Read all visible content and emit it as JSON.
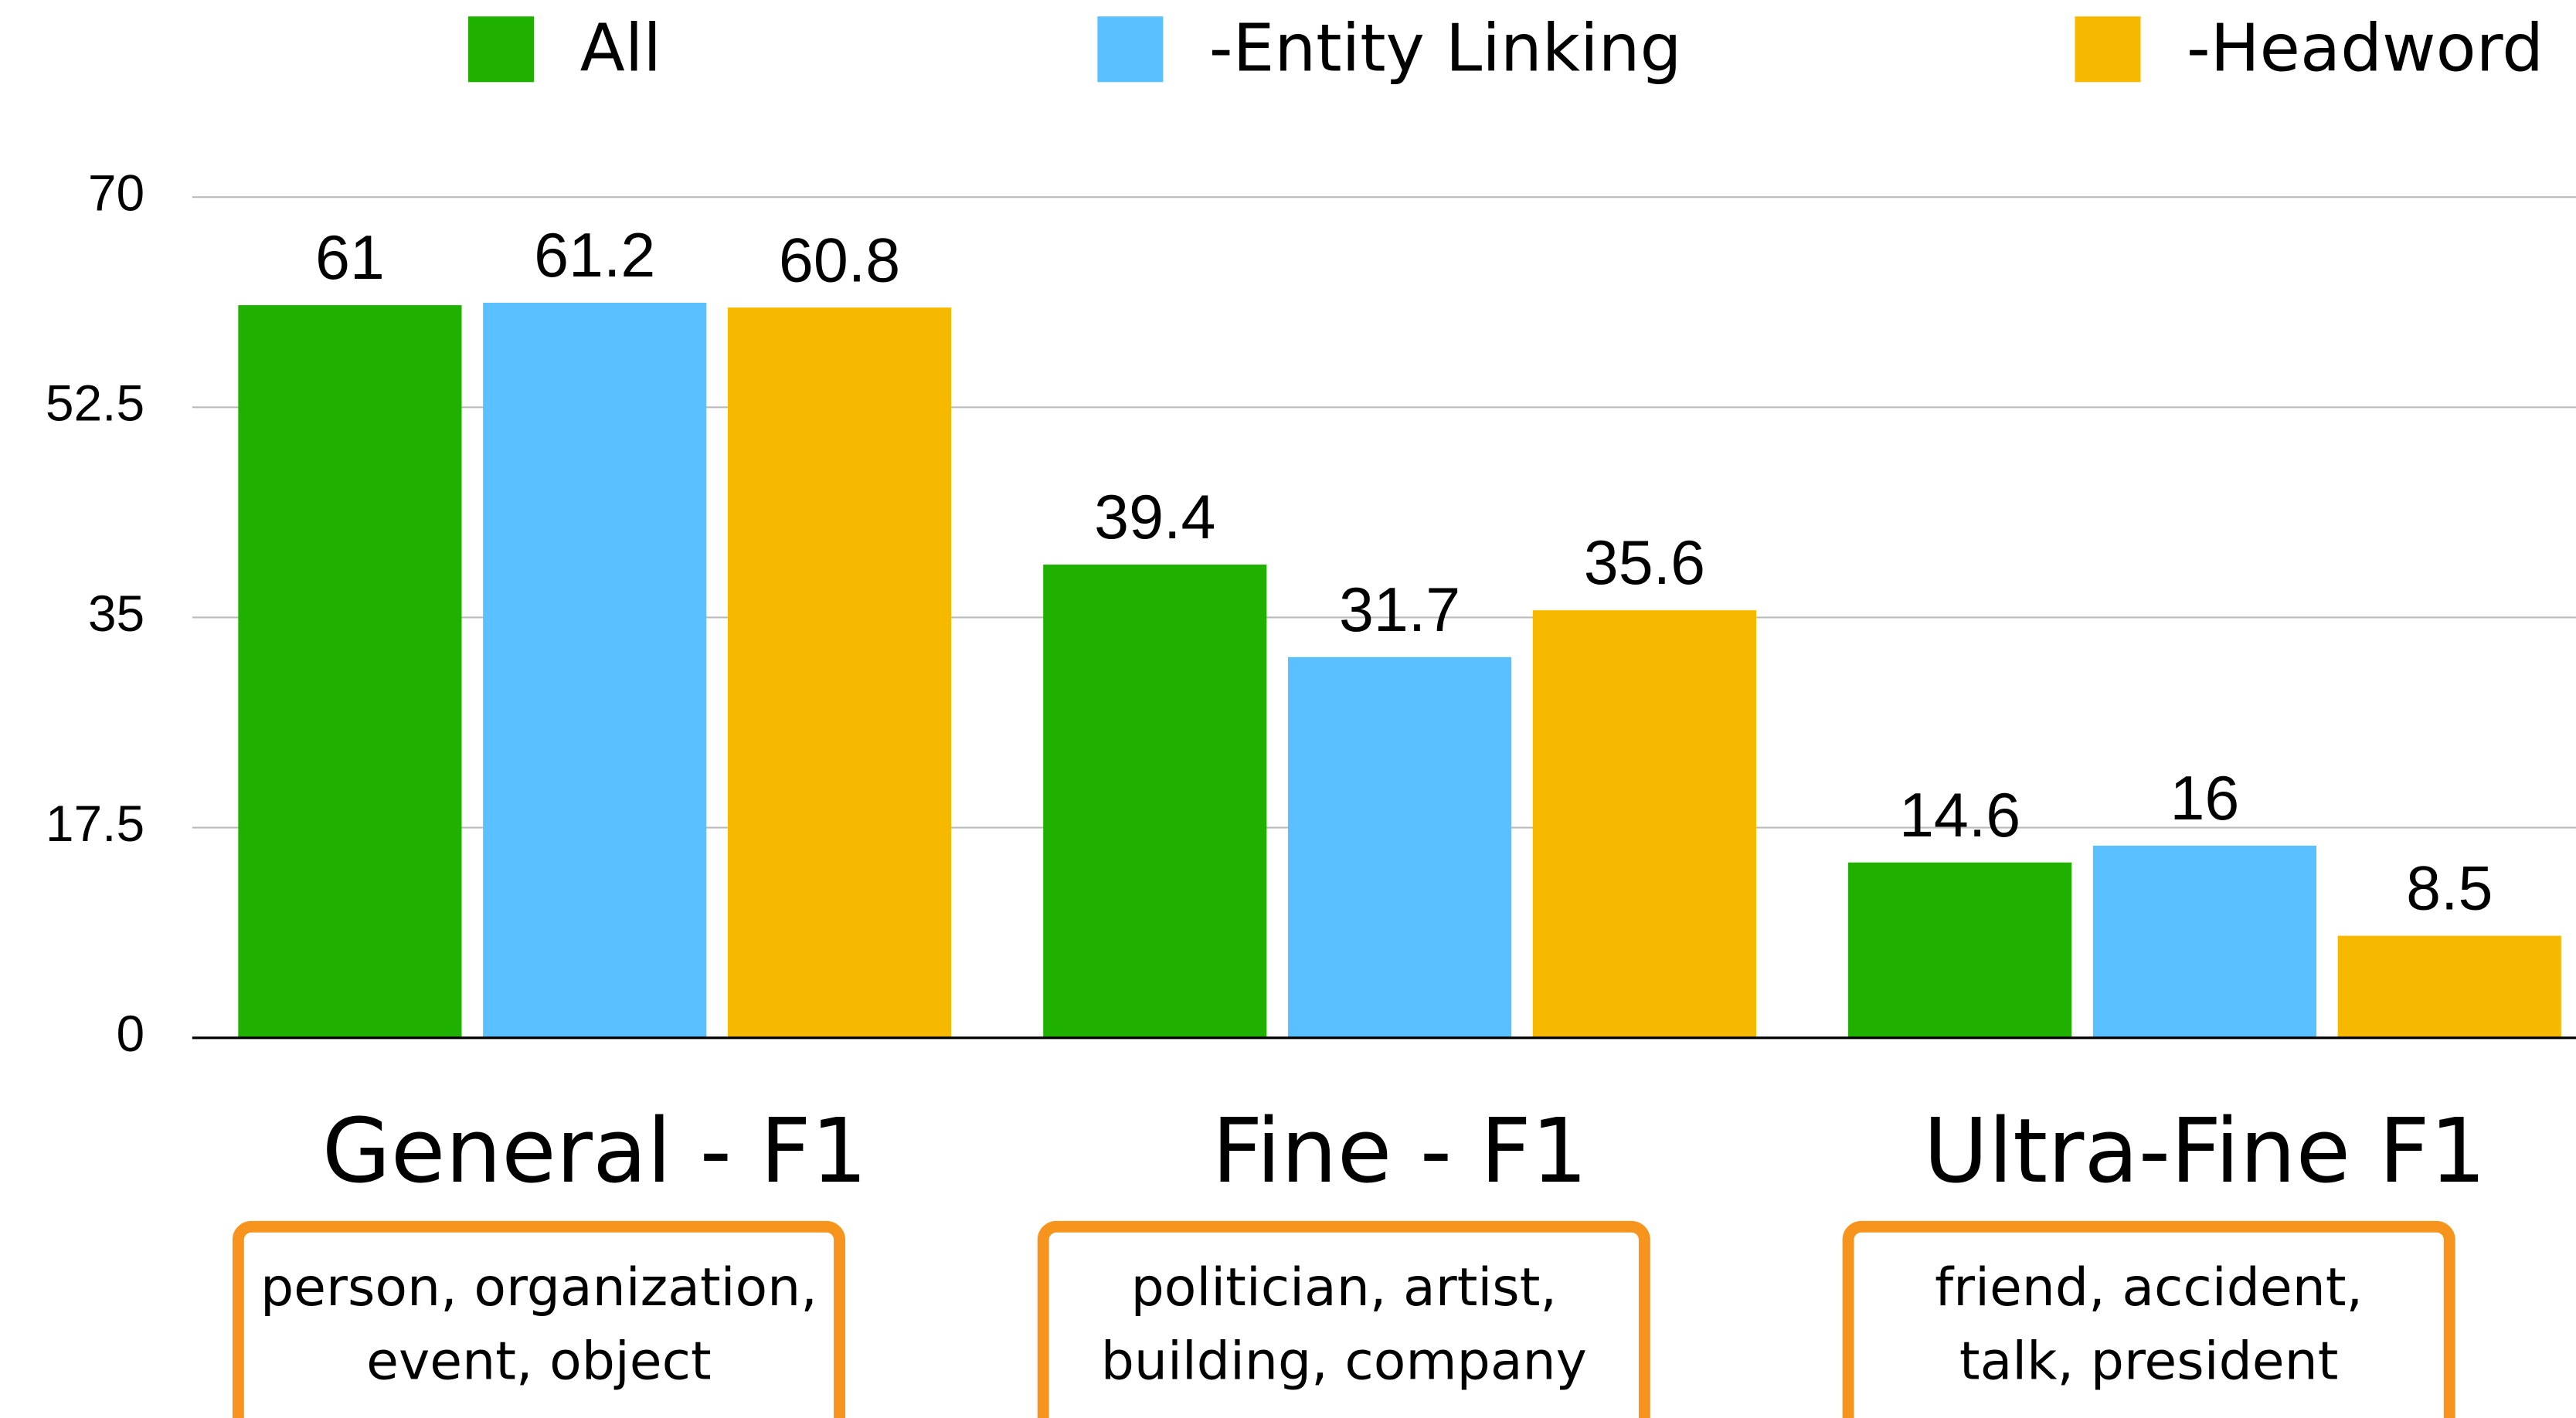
{
  "chart_data": {
    "type": "bar",
    "categories": [
      "General - F1",
      "Fine - F1",
      "Ultra-Fine F1"
    ],
    "category_examples": [
      [
        "person, organization,",
        "event, object"
      ],
      [
        "politician, artist,",
        "building, company"
      ],
      [
        "friend, accident,",
        "talk, president"
      ]
    ],
    "series": [
      {
        "name": "All",
        "color": "#1fb000",
        "values": [
          61,
          39.4,
          14.6
        ]
      },
      {
        "name": "-Entity Linking",
        "color": "#5ac0ff",
        "values": [
          61.2,
          31.7,
          16
        ]
      },
      {
        "name": "-Headword",
        "color": "#f7b900",
        "values": [
          60.8,
          35.6,
          8.5
        ]
      }
    ],
    "ylim": [
      0,
      70
    ],
    "yticks": [
      0,
      17.5,
      35,
      52.5,
      70
    ],
    "grid": true,
    "legend": "top"
  }
}
